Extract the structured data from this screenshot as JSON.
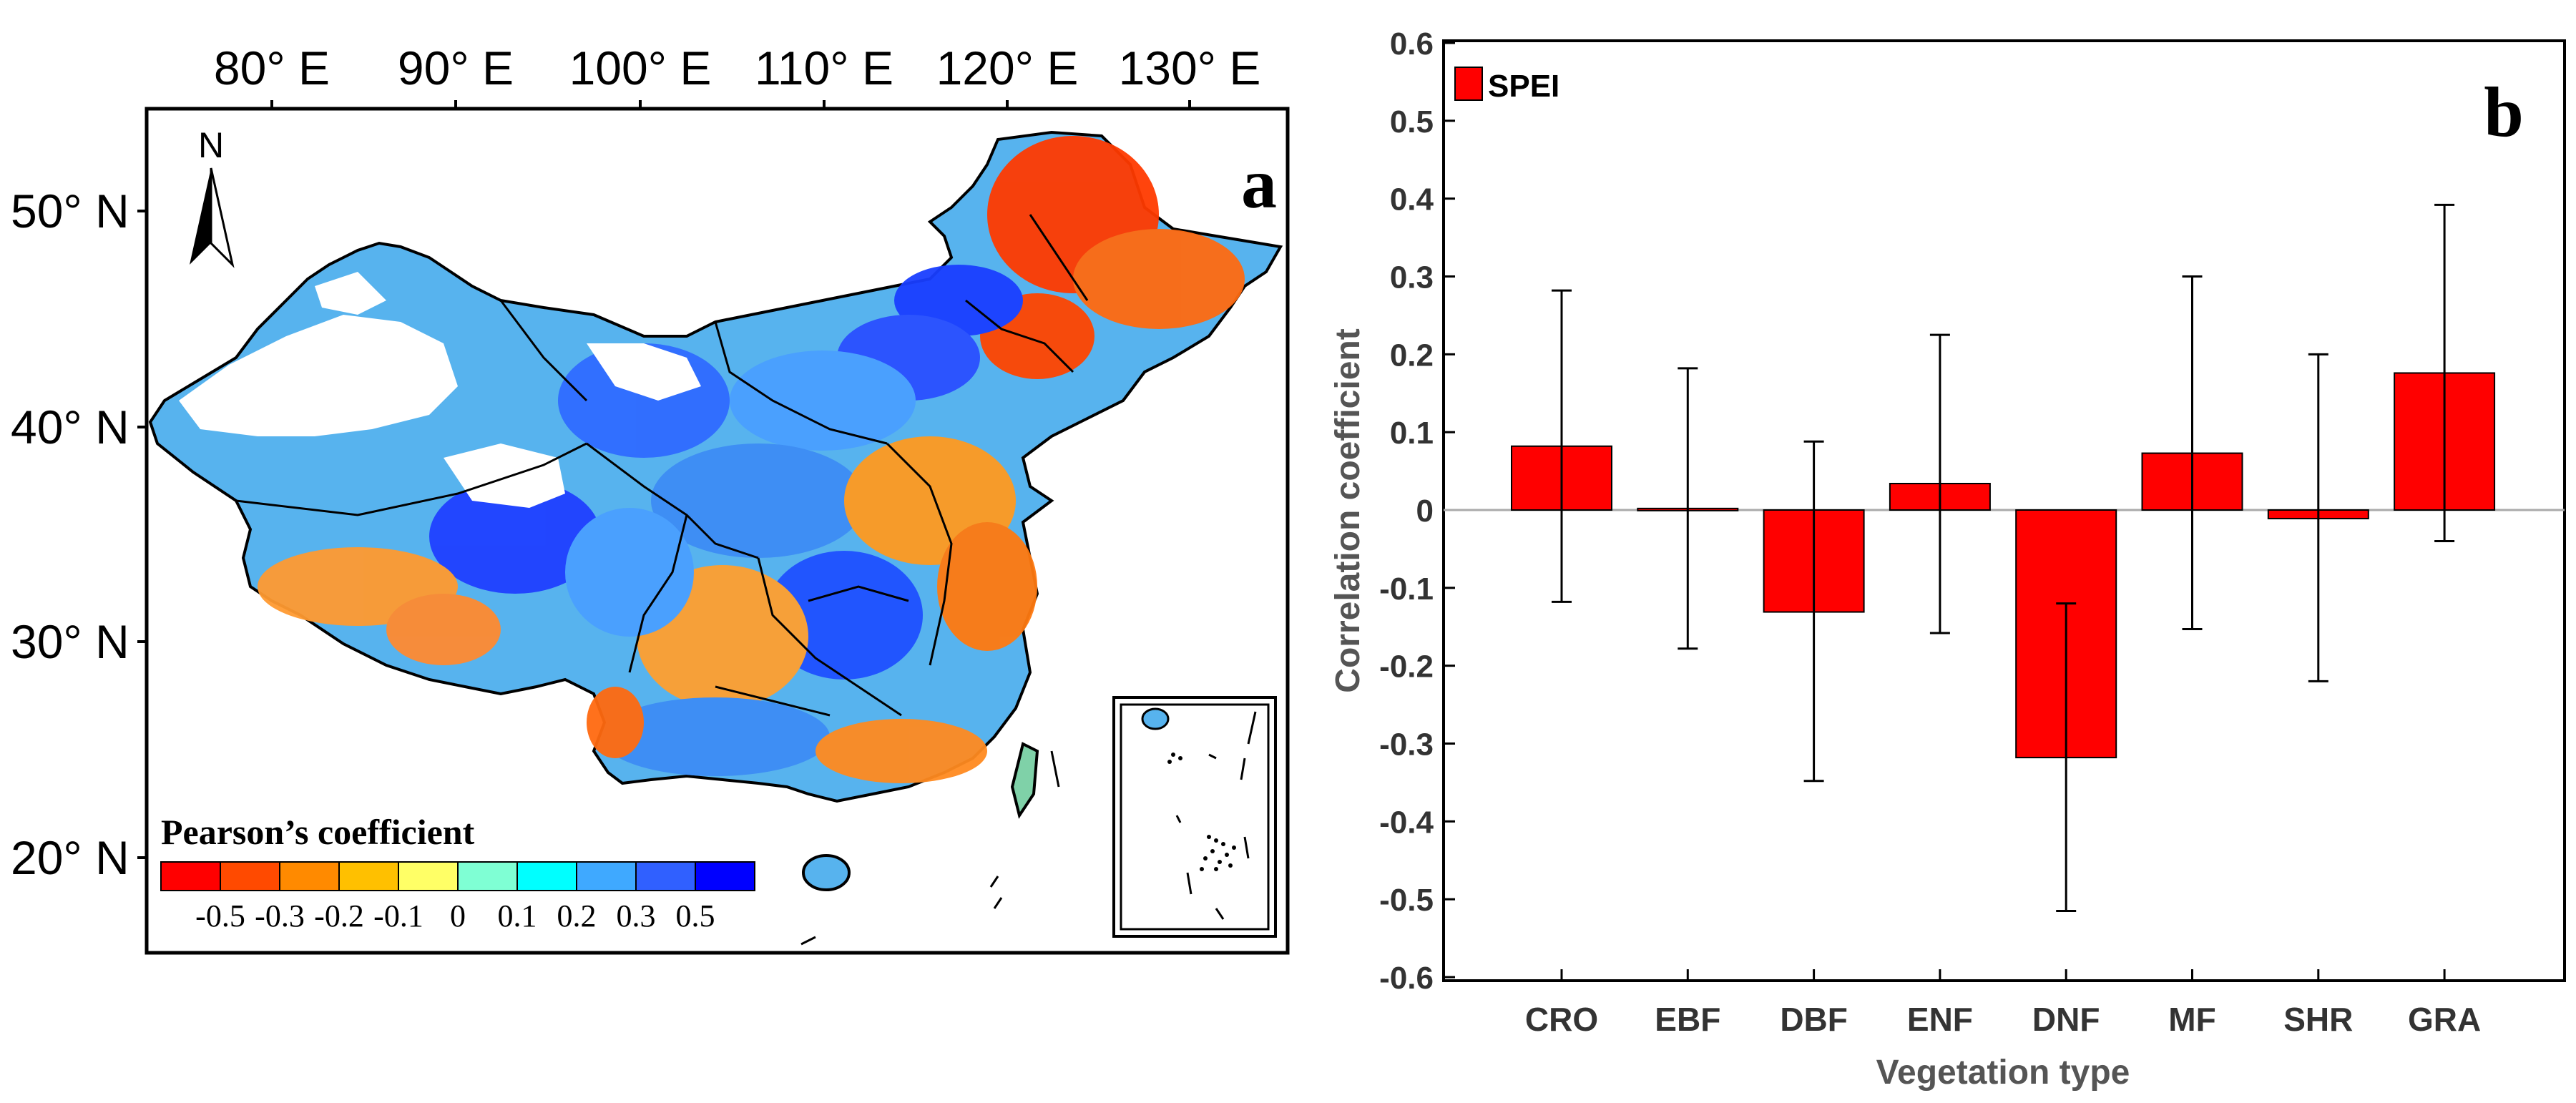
{
  "panel_a": {
    "label": "a",
    "north_label": "N",
    "lon_ticks": [
      "80° E",
      "90° E",
      "100° E",
      "110° E",
      "120° E",
      "130° E"
    ],
    "lat_ticks": [
      "50° N",
      "40° N",
      "30° N",
      "20° N"
    ],
    "legend": {
      "title": "Pearson’s coefficient",
      "labels": [
        "-0.5",
        "-0.3",
        "-0.2",
        "-0.1",
        "0",
        "0.1",
        "0.2",
        "0.3",
        "0.5"
      ],
      "colors": [
        "#ff0000",
        "#ff4a00",
        "#ff8a00",
        "#ffc000",
        "#ffff66",
        "#7fffd4",
        "#00ffff",
        "#3fa9ff",
        "#3060ff",
        "#0000ff"
      ]
    }
  },
  "chart_data": {
    "type": "bar",
    "panel_label": "b",
    "title": "",
    "xlabel": "Vegetation type",
    "ylabel": "Correlation coefficient",
    "categories": [
      "CRO",
      "EBF",
      "DBF",
      "ENF",
      "DNF",
      "MF",
      "SHR",
      "GRA"
    ],
    "series": [
      {
        "name": "SPEI",
        "color": "#ff0000",
        "values": [
          0.082,
          0.002,
          -0.131,
          0.034,
          -0.318,
          0.073,
          -0.011,
          0.176
        ],
        "error_low": [
          -0.118,
          -0.178,
          -0.348,
          -0.158,
          -0.515,
          -0.153,
          -0.22,
          -0.04
        ],
        "error_high": [
          0.282,
          0.182,
          0.088,
          0.225,
          -0.12,
          0.3,
          0.2,
          0.392
        ]
      }
    ],
    "ylim": [
      -0.6,
      0.6
    ],
    "yticks": [
      "0.6",
      "0.5",
      "0.4",
      "0.3",
      "0.2",
      "0.1",
      "0",
      "-0.1",
      "-0.2",
      "-0.3",
      "-0.4",
      "-0.5",
      "-0.6"
    ],
    "ytick_values": [
      0.6,
      0.5,
      0.4,
      0.3,
      0.2,
      0.1,
      0,
      -0.1,
      -0.2,
      -0.3,
      -0.4,
      -0.5,
      -0.6
    ],
    "legend_position": "top-left"
  }
}
